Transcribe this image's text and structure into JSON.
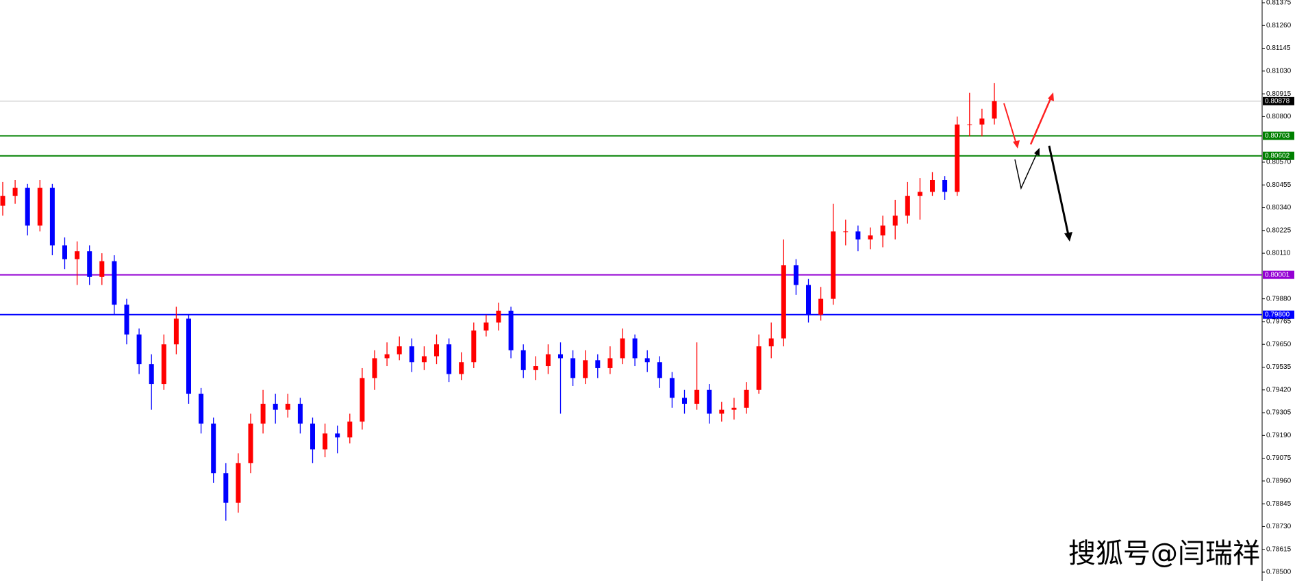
{
  "chart_data": {
    "type": "candlestick",
    "up_color": "#ff0000",
    "down_color": "#0000ff",
    "ylim": [
      0.785,
      0.81375
    ],
    "yticks": [
      {
        "value": 0.81375,
        "label": "0.81375"
      },
      {
        "value": 0.8126,
        "label": "0.81260"
      },
      {
        "value": 0.81145,
        "label": "0.81145"
      },
      {
        "value": 0.8103,
        "label": "0.81030"
      },
      {
        "value": 0.80915,
        "label": "0.80915"
      },
      {
        "value": 0.808,
        "label": "0.80800"
      },
      {
        "value": 0.8057,
        "label": "0.80570"
      },
      {
        "value": 0.80455,
        "label": "0.80455"
      },
      {
        "value": 0.8034,
        "label": "0.80340"
      },
      {
        "value": 0.80225,
        "label": "0.80225"
      },
      {
        "value": 0.8011,
        "label": "0.80110"
      },
      {
        "value": 0.7988,
        "label": "0.79880"
      },
      {
        "value": 0.79765,
        "label": "0.79765"
      },
      {
        "value": 0.7965,
        "label": "0.79650"
      },
      {
        "value": 0.79535,
        "label": "0.79535"
      },
      {
        "value": 0.7942,
        "label": "0.79420"
      },
      {
        "value": 0.79305,
        "label": "0.79305"
      },
      {
        "value": 0.7919,
        "label": "0.79190"
      },
      {
        "value": 0.79075,
        "label": "0.79075"
      },
      {
        "value": 0.7896,
        "label": "0.78960"
      },
      {
        "value": 0.78845,
        "label": "0.78845"
      },
      {
        "value": 0.7873,
        "label": "0.78730"
      },
      {
        "value": 0.78615,
        "label": "0.78615"
      },
      {
        "value": 0.785,
        "label": "0.78500"
      }
    ],
    "levels": [
      {
        "value": 0.80878,
        "label": "0.80878",
        "color": "#c0c0c0",
        "label_bg": "#000000"
      },
      {
        "value": 0.80703,
        "label": "0.80703",
        "color": "#008000",
        "label_bg": "#008000"
      },
      {
        "value": 0.80602,
        "label": "0.80602",
        "color": "#008000",
        "label_bg": "#008000"
      },
      {
        "value": 0.80001,
        "label": "0.80001",
        "color": "#9400d3",
        "label_bg": "#9400d3"
      },
      {
        "value": 0.798,
        "label": "0.79800",
        "color": "#0000ff",
        "label_bg": "#0000ff"
      }
    ],
    "watermark": "搜狐号@闫瑞祥",
    "open": [
      0.8035,
      0.804,
      0.8044,
      0.8025,
      0.8044,
      0.8015,
      0.8008,
      0.8012,
      0.7999,
      0.8007,
      0.7985,
      0.797,
      0.7955,
      0.7945,
      0.7965,
      0.7978,
      0.794,
      0.7925,
      0.79,
      0.7885,
      0.7905,
      0.7925,
      0.7935,
      0.7932,
      0.7935,
      0.7925,
      0.7912,
      0.792,
      0.7918,
      0.7926,
      0.7948,
      0.7958,
      0.796,
      0.7964,
      0.7956,
      0.7959,
      0.7965,
      0.795,
      0.7956,
      0.7972,
      0.7976,
      0.7982,
      0.7962,
      0.7952,
      0.7954,
      0.796,
      0.7958,
      0.7948,
      0.7957,
      0.7953,
      0.7958,
      0.7968,
      0.7958,
      0.7956,
      0.7948,
      0.7938,
      0.7935,
      0.7942,
      0.793,
      0.7932,
      0.7933,
      0.7942,
      0.7964,
      0.7968,
      0.8005,
      0.7995,
      0.798,
      0.7988,
      0.8022,
      0.8022,
      0.8018,
      0.802,
      0.8025,
      0.803,
      0.804,
      0.8042,
      0.8048,
      0.8042,
      0.8076,
      0.8076,
      0.8079
    ],
    "high": [
      0.8047,
      0.8048,
      0.8046,
      0.8048,
      0.8046,
      0.8019,
      0.8017,
      0.8015,
      0.8011,
      0.801,
      0.7988,
      0.7973,
      0.796,
      0.797,
      0.7984,
      0.798,
      0.7943,
      0.7928,
      0.7905,
      0.791,
      0.793,
      0.7942,
      0.794,
      0.794,
      0.7938,
      0.7928,
      0.7925,
      0.7924,
      0.793,
      0.7953,
      0.7962,
      0.7966,
      0.7969,
      0.7968,
      0.7964,
      0.797,
      0.7968,
      0.7961,
      0.7976,
      0.798,
      0.7986,
      0.7984,
      0.7965,
      0.7959,
      0.7965,
      0.7966,
      0.7962,
      0.7962,
      0.796,
      0.7964,
      0.7973,
      0.797,
      0.7962,
      0.7959,
      0.7951,
      0.7942,
      0.7966,
      0.7945,
      0.7936,
      0.7938,
      0.7946,
      0.797,
      0.7976,
      0.8018,
      0.8008,
      0.7998,
      0.7994,
      0.8036,
      0.8028,
      0.8025,
      0.8024,
      0.803,
      0.8038,
      0.8047,
      0.8049,
      0.8052,
      0.805,
      0.808,
      0.8092,
      0.8084,
      0.8097
    ],
    "low": [
      0.803,
      0.8036,
      0.802,
      0.8022,
      0.801,
      0.8003,
      0.7995,
      0.7995,
      0.7995,
      0.798,
      0.7965,
      0.795,
      0.7932,
      0.7942,
      0.796,
      0.7935,
      0.792,
      0.7895,
      0.7876,
      0.788,
      0.79,
      0.792,
      0.7925,
      0.7928,
      0.792,
      0.7905,
      0.7908,
      0.791,
      0.7915,
      0.7922,
      0.7942,
      0.7954,
      0.7957,
      0.7951,
      0.7952,
      0.7955,
      0.7946,
      0.7947,
      0.7953,
      0.7969,
      0.7972,
      0.7958,
      0.7948,
      0.7947,
      0.795,
      0.793,
      0.7944,
      0.7945,
      0.7948,
      0.795,
      0.7955,
      0.7954,
      0.7951,
      0.7943,
      0.7933,
      0.793,
      0.7932,
      0.7925,
      0.7926,
      0.7927,
      0.793,
      0.794,
      0.7958,
      0.7964,
      0.799,
      0.7976,
      0.7977,
      0.7985,
      0.8015,
      0.8012,
      0.8013,
      0.8014,
      0.8018,
      0.8026,
      0.8028,
      0.804,
      0.8038,
      0.804,
      0.807,
      0.807,
      0.8076
    ],
    "close": [
      0.804,
      0.8044,
      0.8025,
      0.8044,
      0.8015,
      0.8008,
      0.8012,
      0.7999,
      0.8007,
      0.7985,
      0.797,
      0.7955,
      0.7945,
      0.7965,
      0.7978,
      0.794,
      0.7925,
      0.79,
      0.7885,
      0.7905,
      0.7925,
      0.7935,
      0.7932,
      0.7935,
      0.7925,
      0.7912,
      0.792,
      0.7918,
      0.7926,
      0.7948,
      0.7958,
      0.796,
      0.7964,
      0.7956,
      0.7959,
      0.7965,
      0.795,
      0.7956,
      0.7972,
      0.7976,
      0.7982,
      0.7962,
      0.7952,
      0.7954,
      0.796,
      0.7958,
      0.7948,
      0.7957,
      0.7953,
      0.7958,
      0.7968,
      0.7958,
      0.7956,
      0.7948,
      0.7938,
      0.7935,
      0.7942,
      0.793,
      0.7932,
      0.7933,
      0.7942,
      0.7964,
      0.7968,
      0.8005,
      0.7995,
      0.798,
      0.7988,
      0.8022,
      0.8022,
      0.8018,
      0.802,
      0.8025,
      0.803,
      0.804,
      0.8042,
      0.8048,
      0.8042,
      0.8076,
      0.8076,
      0.8079,
      0.80878
    ]
  }
}
